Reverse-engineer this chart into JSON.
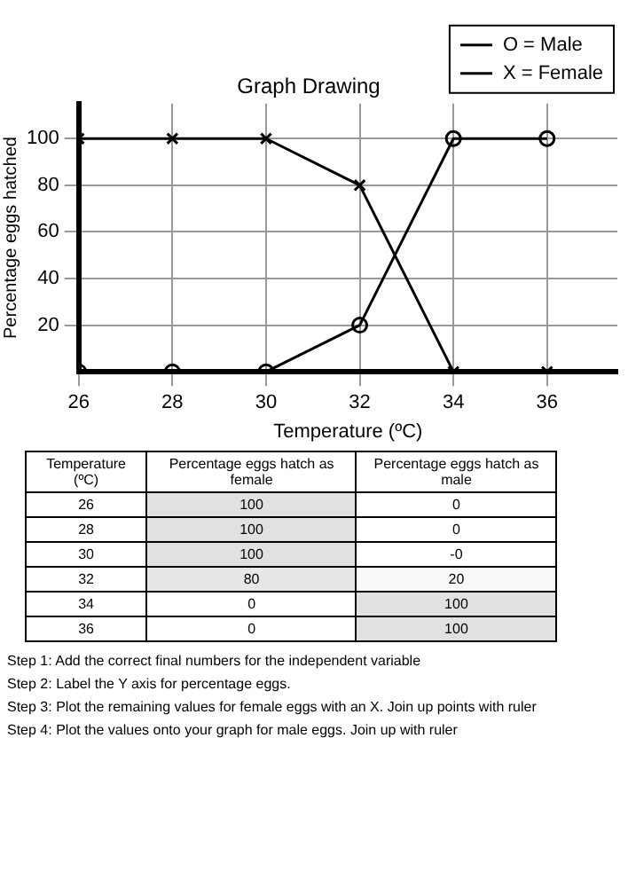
{
  "chart_data": [
    {
      "type": "line",
      "title": "Graph Drawing",
      "xlabel": "Temperature (ºC)",
      "ylabel": "Percentage eggs hatched",
      "x": [
        26,
        28,
        30,
        32,
        34,
        36
      ],
      "series": [
        {
          "name": "O = Male",
          "color": "#000000",
          "marker": "circle",
          "values": [
            0,
            0,
            0,
            20,
            100,
            100
          ]
        },
        {
          "name": "X = Female",
          "color": "#000000",
          "marker": "cross",
          "values": [
            100,
            100,
            100,
            80,
            0,
            0
          ]
        }
      ],
      "xlim": [
        26,
        37.5
      ],
      "xticks": [
        26,
        28,
        30,
        32,
        34,
        36
      ],
      "ylim": [
        0,
        115
      ],
      "yticks": [
        20,
        40,
        60,
        80,
        100
      ],
      "grid": true,
      "legend": "top right",
      "line_style": "solid",
      "annotations": [
        "Step 1: Add the correct final numbers for the independent variable",
        "Step 2: Label the Y axis for percentage eggs.",
        "Step 3: Plot the remaining values for female eggs with an X. Join up points with ruler",
        "Step 4: Plot the values onto your graph for male eggs. Join up with ruler"
      ]
    },
    {
      "type": "heatmap",
      "ylabel": "Temperature (ºC)",
      "categories": [
        "Percentage eggs hatch as female",
        "Percentage eggs hatch as male"
      ],
      "y_categories": [
        "26",
        "28",
        "30",
        "32",
        "34",
        "36"
      ],
      "cells": [
        [
          100,
          0
        ],
        [
          100,
          0
        ],
        [
          100,
          0
        ],
        [
          80,
          20
        ],
        [
          0,
          100
        ],
        [
          0,
          100
        ]
      ],
      "cell_labels": [
        [
          "100",
          "0"
        ],
        [
          "100",
          "0"
        ],
        [
          "100",
          "-0"
        ],
        [
          "80",
          "20"
        ],
        [
          "0",
          "100"
        ],
        [
          "0",
          "100"
        ]
      ]
    }
  ]
}
